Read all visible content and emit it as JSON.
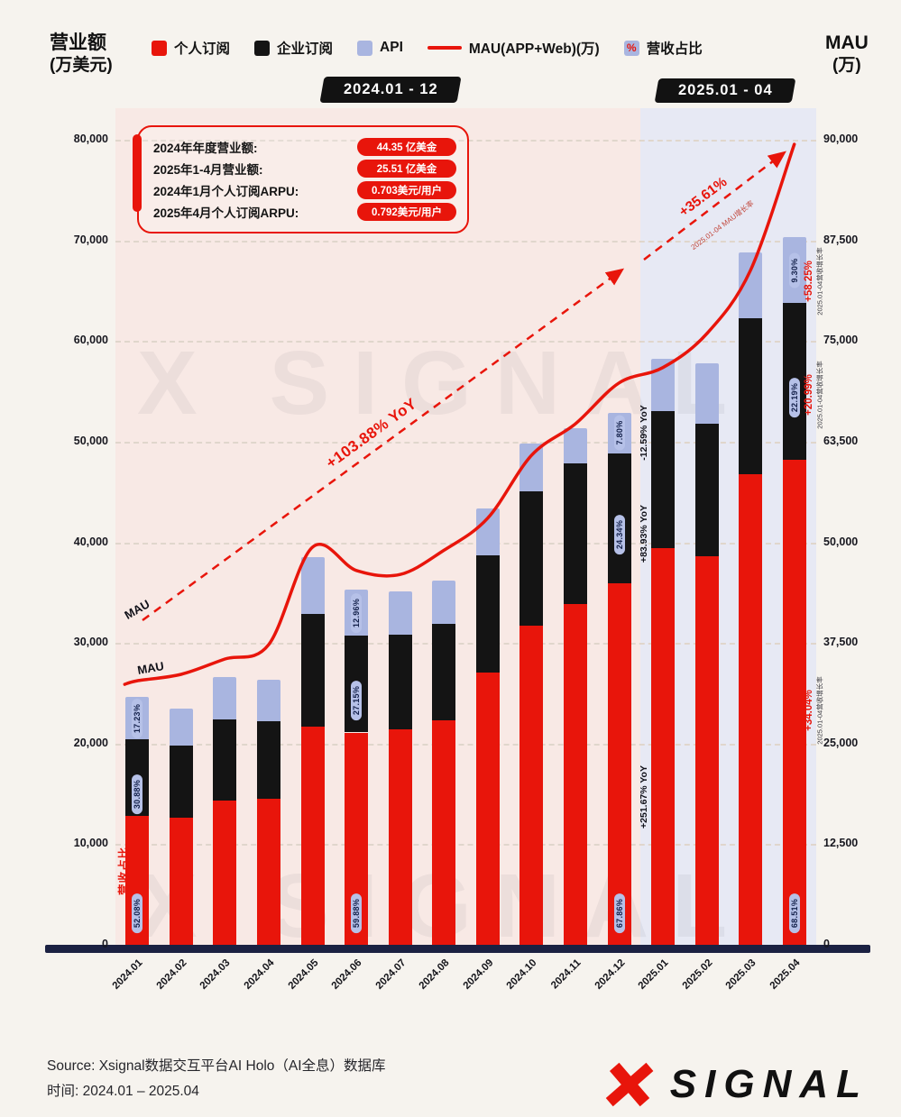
{
  "header": {
    "left_axis_title": [
      "营业额",
      "(万美元)"
    ],
    "right_axis_title": [
      "MAU",
      "(万)"
    ],
    "legend": [
      {
        "label": "个人订阅"
      },
      {
        "label": "企业订阅"
      },
      {
        "label": "API"
      },
      {
        "label": "MAU(APP+Web)(万)"
      },
      {
        "label": "营收占比"
      }
    ],
    "percent_glyph": "%",
    "period_2024": "2024.01 - 12",
    "period_2025": "2025.01 - 04"
  },
  "info_box": {
    "rows": [
      {
        "label": "2024年年度营业额:",
        "value": "44.35 亿美金"
      },
      {
        "label": "2025年1-4月营业额:",
        "value": "25.51 亿美金"
      },
      {
        "label": "2024年1月个人订阅ARPU:",
        "value": "0.703美元/用户"
      },
      {
        "label": "2025年4月个人订阅ARPU:",
        "value": "0.792美元/用户"
      }
    ]
  },
  "chart_data": {
    "type": "stacked-bar+line",
    "bar_unit": "万美元",
    "line_unit": "万",
    "categories": [
      "2024.01",
      "2024.02",
      "2024.03",
      "2024.04",
      "2024.05",
      "2024.06",
      "2024.07",
      "2024.08",
      "2024.09",
      "2024.10",
      "2024.11",
      "2024.12",
      "2025.01",
      "2025.02",
      "2025.03",
      "2025.04"
    ],
    "series": [
      {
        "name": "个人订阅",
        "color": "#e8150b",
        "values": [
          12800,
          12600,
          14300,
          14500,
          21700,
          21100,
          21400,
          22300,
          27100,
          31700,
          33900,
          35900,
          39400,
          38600,
          46800,
          48200
        ]
      },
      {
        "name": "企业订阅",
        "color": "#141414",
        "values": [
          7600,
          7200,
          8100,
          7700,
          11200,
          9600,
          9400,
          9600,
          11600,
          13400,
          13900,
          12900,
          13600,
          13200,
          15500,
          15600
        ]
      },
      {
        "name": "API",
        "color": "#a9b5e0",
        "values": [
          4200,
          3700,
          4200,
          4100,
          5600,
          4600,
          4300,
          4300,
          4700,
          4700,
          3500,
          4100,
          5200,
          6000,
          6500,
          6500
        ]
      }
    ],
    "line": {
      "name": "MAU(APP+Web)(万)",
      "color": "#e8150b",
      "values": [
        32800,
        33600,
        35500,
        37300,
        49400,
        46500,
        46000,
        49000,
        53000,
        60800,
        64700,
        69800,
        71700,
        75900,
        83800,
        90000
      ]
    },
    "left_axis": {
      "title": "营业额(万美元)",
      "max": 80000,
      "ticks": [
        "0",
        "10,000",
        "20,000",
        "30,000",
        "40,000",
        "50,000",
        "60,000",
        "70,000",
        "80,000"
      ]
    },
    "right_axis": {
      "title": "MAU(万)",
      "ticks": [
        "0",
        "12,500",
        "25,000",
        "37,500",
        "50,000",
        "63,500",
        "75,000",
        "87,500",
        "90,000"
      ]
    },
    "bar_pct_labels": [
      {
        "bar": 0,
        "segment": 0,
        "text": "52.08%"
      },
      {
        "bar": 0,
        "segment": 1,
        "text": "30.88%"
      },
      {
        "bar": 0,
        "segment": 2,
        "text": "17.23%"
      },
      {
        "bar": 5,
        "segment": 0,
        "text": "59.88%"
      },
      {
        "bar": 5,
        "segment": 1,
        "text": "27.15%"
      },
      {
        "bar": 5,
        "segment": 2,
        "text": "12.96%"
      },
      {
        "bar": 11,
        "segment": 0,
        "text": "67.86%"
      },
      {
        "bar": 11,
        "segment": 1,
        "text": "24.34%"
      },
      {
        "bar": 11,
        "segment": 2,
        "text": "7.80%"
      },
      {
        "bar": 15,
        "segment": 0,
        "text": "68.51%"
      },
      {
        "bar": 15,
        "segment": 1,
        "text": "22.19%"
      },
      {
        "bar": 15,
        "segment": 2,
        "text": "9.30%"
      }
    ],
    "yoy_labels": [
      "-12.59% YoY",
      "+83.93% YoY",
      "+251.67% YoY"
    ],
    "growth_labels": [
      {
        "pct": "+58.25%",
        "sub": "2025.01-04营收增长率"
      },
      {
        "pct": "+20.99%",
        "sub": "2025.01-04营收增长率"
      },
      {
        "pct": "+34.04%",
        "sub": "2025.01-04营收增长率"
      }
    ],
    "trend_2024": {
      "label": "+103.88% YoY"
    },
    "trend_2025": {
      "label": "+35.61%",
      "sub": "2025.01-04 MAU增长率"
    },
    "mau_inline_labels": [
      "MAU",
      "MAU"
    ],
    "revenue_share_label": "营收占比"
  },
  "footer": {
    "source": "Source:  Xsignal数据交互平台AI Holo（AI全息）数据库",
    "time": "时间:  2024.01 – 2025.04",
    "logo_text": "SIGNAL"
  },
  "watermark": "X SIGNAL"
}
